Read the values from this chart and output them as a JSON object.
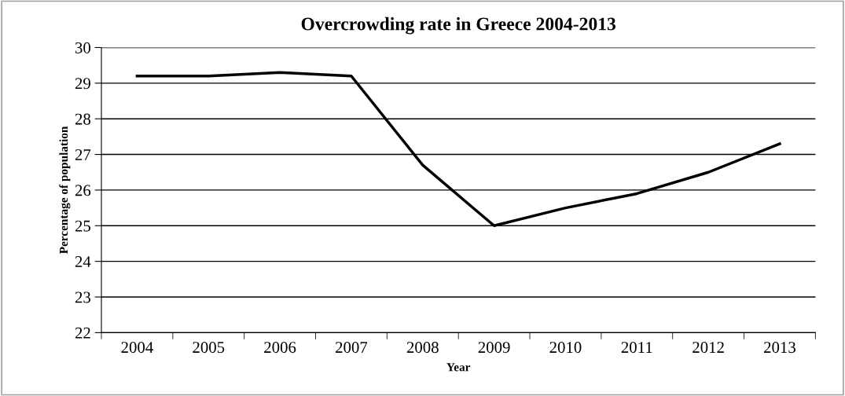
{
  "chart_data": {
    "type": "line",
    "title": "Overcrowding rate in Greece 2004-2013",
    "xlabel": "Year",
    "ylabel": "Percentage of population",
    "categories": [
      "2004",
      "2005",
      "2006",
      "2007",
      "2008",
      "2009",
      "2010",
      "2011",
      "2012",
      "2013"
    ],
    "series": [
      {
        "color": "#000000",
        "values": [
          29.2,
          29.2,
          29.3,
          29.2,
          26.7,
          25.0,
          25.5,
          25.9,
          26.5,
          27.3
        ]
      }
    ],
    "ylim": [
      22,
      30
    ],
    "yticks": [
      22,
      23,
      24,
      25,
      26,
      27,
      28,
      29,
      30
    ],
    "grid": "y",
    "marker": "none",
    "line_style": "solid"
  }
}
